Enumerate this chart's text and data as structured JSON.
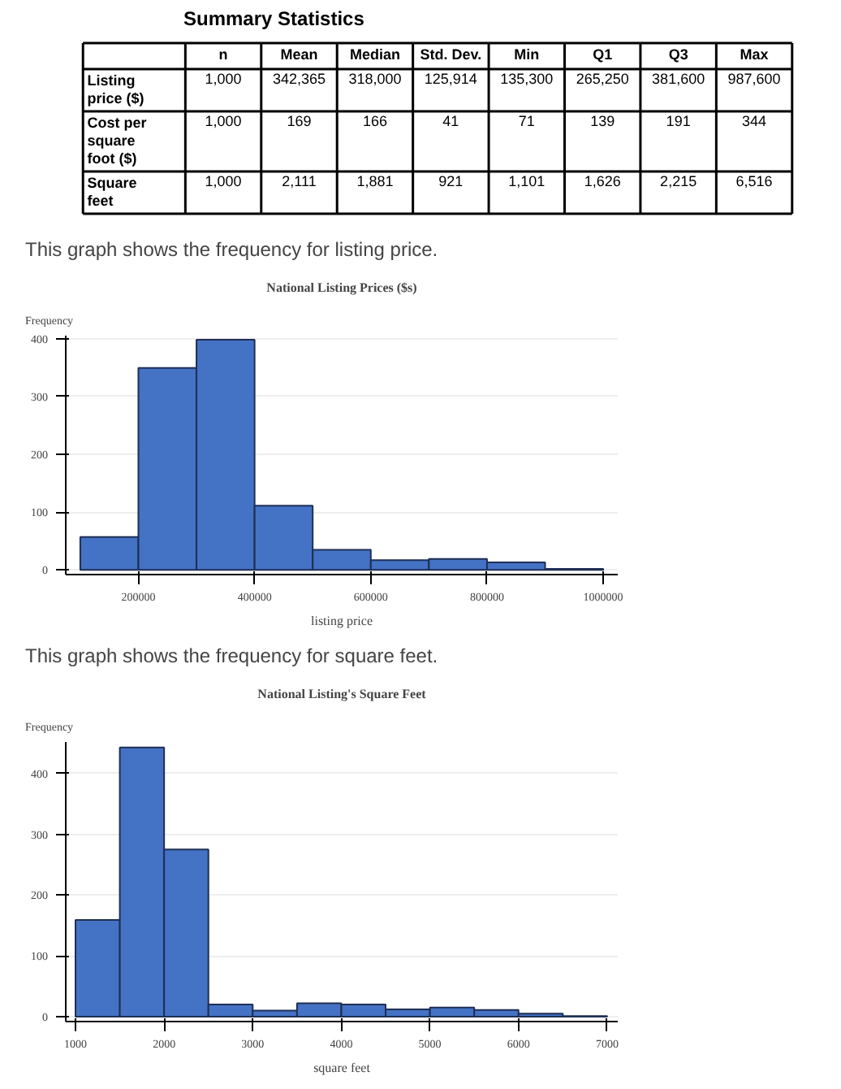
{
  "chart_data": [
    {
      "type": "other",
      "title": "Summary Statistics",
      "categories": [
        null,
        "n",
        "Mean",
        "Median",
        "Std. Dev.",
        "Min",
        "Q1",
        "Q3",
        "Max"
      ],
      "y_categories": [
        "Listing price ($)",
        "Cost per square foot ($)",
        "Square feet"
      ],
      "cell_labels": [
        [
          "1,000",
          "342,365",
          "318,000",
          "125,914",
          "135,300",
          "265,250",
          "381,600",
          "987,600"
        ],
        [
          "1,000",
          "169",
          "166",
          "41",
          "71",
          "139",
          "191",
          "344"
        ],
        [
          "1,000",
          "2,111",
          "1,881",
          "921",
          "1,101",
          "1,626",
          "2,215",
          "6,516"
        ]
      ]
    },
    {
      "type": "histogram",
      "title": "National Listing Prices ($s)",
      "annotations": [
        "This graph shows the frequency for listing price."
      ],
      "xlabel": "listing price",
      "ylabel": "Frequency",
      "bins": [
        100000,
        200000,
        300000,
        400000,
        500000,
        600000,
        700000,
        800000,
        900000,
        1000000
      ],
      "values": [
        57,
        349,
        398,
        111,
        35,
        17,
        19,
        13,
        2
      ],
      "color": "#4472c4",
      "xlim": [
        75000,
        1025000
      ],
      "ylim": [
        -8,
        405
      ],
      "xticks": [
        200000,
        400000,
        600000,
        800000,
        1000000
      ],
      "yticks": [
        0,
        100,
        200,
        300,
        400
      ],
      "grid": "y"
    },
    {
      "type": "histogram",
      "title": "National Listing's Square Feet",
      "annotations": [
        "This graph shows the frequency for square feet."
      ],
      "xlabel": "square feet",
      "ylabel": "Frequency",
      "bins": [
        1000,
        1500,
        2000,
        2500,
        3000,
        3500,
        4000,
        4500,
        5000,
        5500,
        6000,
        6500,
        7000
      ],
      "values": [
        159,
        443,
        275,
        20,
        10,
        22,
        20,
        12,
        15,
        11,
        5,
        1
      ],
      "color": "#4472c4",
      "xlim": [
        890,
        7120
      ],
      "ylim": [
        -8,
        452
      ],
      "xticks": [
        1000,
        2000,
        3000,
        4000,
        5000,
        6000,
        7000
      ],
      "yticks": [
        0,
        100,
        200,
        300,
        400
      ],
      "grid": "y"
    }
  ]
}
